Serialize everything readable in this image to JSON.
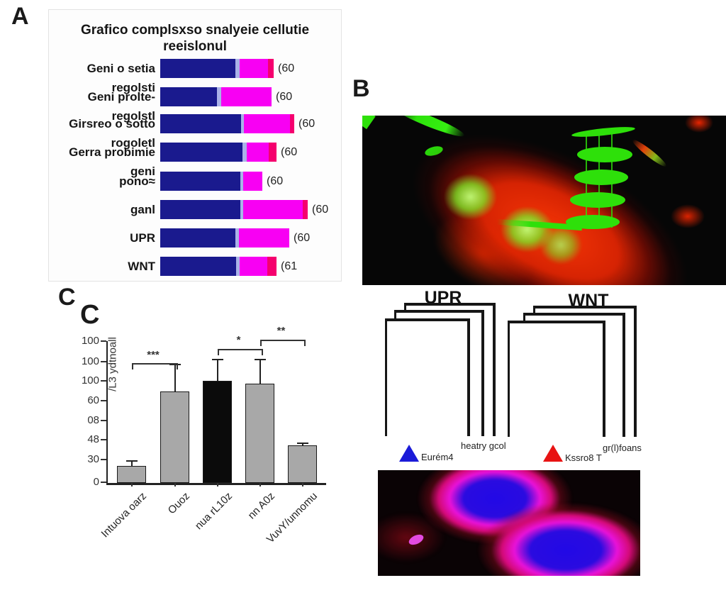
{
  "figure": {
    "panel_a_letter": "A",
    "panel_b_letter": "B",
    "panel_c_letter": "C",
    "panel_c_letter_echo": "C"
  },
  "colors": {
    "navy": "#1a1a8e",
    "lavender": "#aab2e8",
    "magenta": "#f800f3",
    "pink_tip": "#f5006e",
    "bar_gray": "#a8a8a8",
    "bar_black": "#0b0b0b",
    "legend_blue": "#1b1bd8",
    "legend_red": "#e81313"
  },
  "panelA": {
    "title_line1": "Grafico complsxso snalyeie cellutie",
    "title_line2": "reeislonul"
  },
  "pathway": {
    "upr_label": "UPR",
    "wnt_label": "WNT",
    "legend_blue_label": "Eurém4",
    "legend_blue_note": "heatry gcol",
    "legend_red_label": "Kssro8 T",
    "legend_red_note": "gr(l)foans"
  },
  "chart_data": [
    {
      "type": "bar",
      "subtype": "stacked-horizontal",
      "title": "Grafico complsxso snalyeie cellutie reeislonul",
      "categories": [
        "Geni o setia regolsti",
        "Geni prolte-regolstl",
        "Girsreo o sotto rogoletl",
        "Gerra probimie geni",
        "pono≈",
        "ganl",
        "UPR",
        "WNT"
      ],
      "series": [
        {
          "name": "navy-segment",
          "color_key": "navy",
          "values": [
            106,
            80,
            114,
            116,
            113,
            113,
            106,
            107
          ]
        },
        {
          "name": "lavender-segment",
          "color_key": "lavender",
          "values": [
            6,
            6,
            4,
            6,
            4,
            4,
            5,
            5
          ]
        },
        {
          "name": "magenta-segment",
          "color_key": "magenta",
          "values": [
            40,
            71,
            65,
            31,
            27,
            84,
            71,
            39
          ]
        },
        {
          "name": "pink-tip-segment",
          "color_key": "pink_tip",
          "values": [
            8,
            0,
            6,
            11,
            0,
            7,
            0,
            13
          ]
        }
      ],
      "value_labels": [
        "(60",
        "(60",
        "(60",
        "(60",
        "(60",
        "(60",
        "(60",
        "(61"
      ],
      "units": "arbitrary (no axis shown)",
      "legend_position": "none",
      "grid": false
    },
    {
      "type": "bar",
      "categories": [
        "Intuova oarz",
        "Ouoz",
        "nua rL10z",
        "nn A0z",
        "VuvY/unnomu"
      ],
      "values": [
        17,
        90,
        101,
        98,
        37
      ],
      "errors": [
        5,
        27,
        21,
        24,
        2
      ],
      "bar_color_keys": [
        "bar_gray",
        "bar_gray",
        "bar_black",
        "bar_gray",
        "bar_gray"
      ],
      "ylabel": "/L3 ydtnoall",
      "ytick_labels_bottom_up": [
        "0",
        "30",
        "48",
        "08",
        "60",
        "100",
        "100",
        "100"
      ],
      "ylim": [
        0,
        140
      ],
      "grid": false,
      "significance": [
        {
          "pair": [
            0,
            1
          ],
          "label": "***"
        },
        {
          "pair": [
            2,
            3
          ],
          "label": "*"
        },
        {
          "pair": [
            3,
            4
          ],
          "label": "**"
        }
      ]
    }
  ]
}
